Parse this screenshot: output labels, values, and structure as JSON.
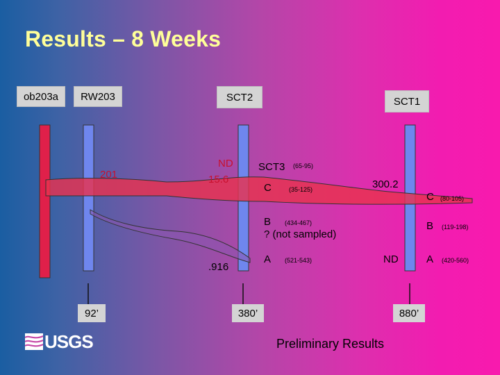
{
  "title": "Results – 8 Weeks",
  "sites": {
    "ob203a": "ob203a",
    "rw203": "RW203",
    "sct2": "SCT2",
    "sct1": "SCT1"
  },
  "plume_labels": {
    "rw203_value": "201",
    "sct2_nd": "ND",
    "sct2_value": "15.6",
    "sct2_low_value": ".916",
    "sct3": "SCT3",
    "sct3_range": "(65-95)",
    "c_mid": "C",
    "c_mid_range": "(35-125)",
    "sct1_value": "300.2",
    "c_right": "C",
    "c_right_range": "(80-105)",
    "b_mid": "B",
    "b_mid_range": "(434-467)",
    "not_sampled": "? (not sampled)",
    "b_right": "B",
    "b_right_range": "(119-198)",
    "a_mid": "A",
    "a_mid_range": "(521-543)",
    "nd_right": "ND",
    "a_right": "A",
    "a_right_range": "(420-560)"
  },
  "distances": {
    "d1": "92’",
    "d2": "380’",
    "d3": "880’"
  },
  "footer": {
    "logo": "USGS",
    "preliminary": "Preliminary Results"
  },
  "colors": {
    "title": "#ffff99",
    "red_well": "#e0204a",
    "blue_well": "#6f86ee",
    "plume": "#e8324f",
    "label_box": "#d4d4d4"
  }
}
